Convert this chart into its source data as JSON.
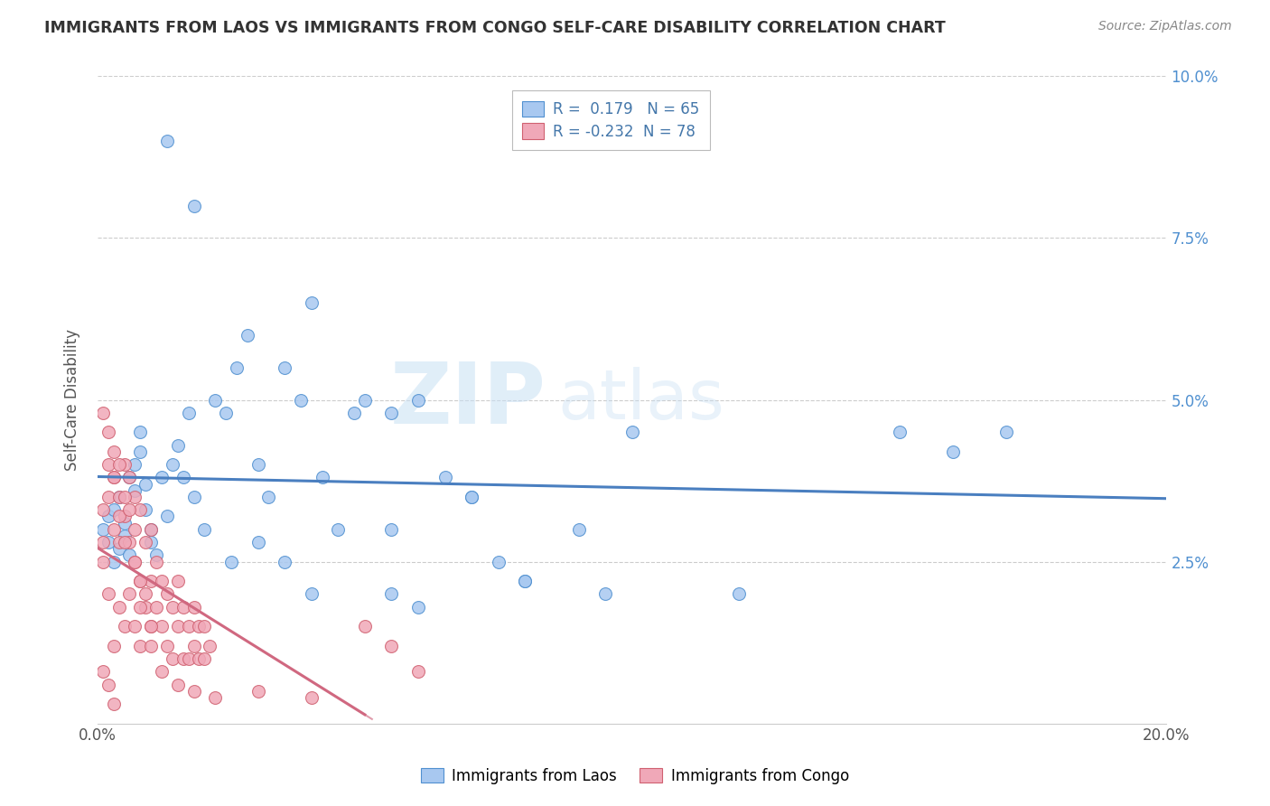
{
  "title": "IMMIGRANTS FROM LAOS VS IMMIGRANTS FROM CONGO SELF-CARE DISABILITY CORRELATION CHART",
  "source": "Source: ZipAtlas.com",
  "ylabel": "Self-Care Disability",
  "xlim": [
    0.0,
    0.2
  ],
  "ylim": [
    0.0,
    0.1
  ],
  "xticks": [
    0.0,
    0.2
  ],
  "xticklabels": [
    "0.0%",
    "20.0%"
  ],
  "yticks_right": [
    0.025,
    0.05,
    0.075,
    0.1
  ],
  "yticklabels_right": [
    "2.5%",
    "5.0%",
    "7.5%",
    "10.0%"
  ],
  "laos_fill": "#a8c8f0",
  "laos_edge": "#5090d0",
  "congo_fill": "#f0a8b8",
  "congo_edge": "#d06070",
  "laos_line_color": "#4a7fc0",
  "congo_line_color": "#d06880",
  "R_laos": 0.179,
  "N_laos": 65,
  "R_congo": -0.232,
  "N_congo": 78,
  "legend_laos": "Immigrants from Laos",
  "legend_congo": "Immigrants from Congo",
  "watermark_zip": "ZIP",
  "watermark_atlas": "atlas",
  "grid_color": "#cccccc",
  "laos_x": [
    0.001,
    0.002,
    0.002,
    0.003,
    0.003,
    0.004,
    0.004,
    0.005,
    0.005,
    0.006,
    0.006,
    0.007,
    0.007,
    0.008,
    0.008,
    0.009,
    0.009,
    0.01,
    0.01,
    0.011,
    0.012,
    0.013,
    0.014,
    0.015,
    0.016,
    0.017,
    0.018,
    0.02,
    0.022,
    0.024,
    0.026,
    0.028,
    0.03,
    0.032,
    0.035,
    0.038,
    0.04,
    0.042,
    0.045,
    0.048,
    0.05,
    0.055,
    0.06,
    0.065,
    0.07,
    0.075,
    0.08,
    0.09,
    0.095,
    0.1,
    0.025,
    0.03,
    0.035,
    0.04,
    0.055,
    0.06,
    0.07,
    0.08,
    0.12,
    0.15,
    0.16,
    0.17,
    0.013,
    0.018,
    0.055
  ],
  "laos_y": [
    0.03,
    0.028,
    0.032,
    0.025,
    0.033,
    0.027,
    0.035,
    0.031,
    0.029,
    0.026,
    0.038,
    0.036,
    0.04,
    0.045,
    0.042,
    0.033,
    0.037,
    0.03,
    0.028,
    0.026,
    0.038,
    0.032,
    0.04,
    0.043,
    0.038,
    0.048,
    0.035,
    0.03,
    0.05,
    0.048,
    0.055,
    0.06,
    0.04,
    0.035,
    0.055,
    0.05,
    0.065,
    0.038,
    0.03,
    0.048,
    0.05,
    0.03,
    0.05,
    0.038,
    0.035,
    0.025,
    0.022,
    0.03,
    0.02,
    0.045,
    0.025,
    0.028,
    0.025,
    0.02,
    0.02,
    0.018,
    0.035,
    0.022,
    0.02,
    0.045,
    0.042,
    0.045,
    0.09,
    0.08,
    0.048
  ],
  "congo_x": [
    0.001,
    0.001,
    0.001,
    0.002,
    0.002,
    0.002,
    0.003,
    0.003,
    0.003,
    0.004,
    0.004,
    0.004,
    0.005,
    0.005,
    0.005,
    0.006,
    0.006,
    0.006,
    0.007,
    0.007,
    0.007,
    0.008,
    0.008,
    0.008,
    0.009,
    0.009,
    0.01,
    0.01,
    0.01,
    0.011,
    0.011,
    0.012,
    0.012,
    0.013,
    0.013,
    0.014,
    0.014,
    0.015,
    0.015,
    0.016,
    0.016,
    0.017,
    0.017,
    0.018,
    0.018,
    0.019,
    0.019,
    0.02,
    0.02,
    0.021,
    0.001,
    0.002,
    0.003,
    0.003,
    0.004,
    0.004,
    0.005,
    0.005,
    0.006,
    0.007,
    0.007,
    0.008,
    0.008,
    0.009,
    0.01,
    0.01,
    0.012,
    0.015,
    0.018,
    0.022,
    0.03,
    0.04,
    0.001,
    0.002,
    0.003,
    0.05,
    0.055,
    0.06
  ],
  "congo_y": [
    0.028,
    0.033,
    0.025,
    0.04,
    0.035,
    0.02,
    0.038,
    0.03,
    0.012,
    0.035,
    0.028,
    0.018,
    0.04,
    0.032,
    0.015,
    0.038,
    0.028,
    0.02,
    0.035,
    0.025,
    0.015,
    0.033,
    0.022,
    0.012,
    0.028,
    0.018,
    0.03,
    0.022,
    0.015,
    0.025,
    0.018,
    0.022,
    0.015,
    0.02,
    0.012,
    0.018,
    0.01,
    0.022,
    0.015,
    0.018,
    0.01,
    0.015,
    0.01,
    0.018,
    0.012,
    0.015,
    0.01,
    0.015,
    0.01,
    0.012,
    0.048,
    0.045,
    0.042,
    0.038,
    0.04,
    0.032,
    0.035,
    0.028,
    0.033,
    0.03,
    0.025,
    0.022,
    0.018,
    0.02,
    0.015,
    0.012,
    0.008,
    0.006,
    0.005,
    0.004,
    0.005,
    0.004,
    0.008,
    0.006,
    0.003,
    0.015,
    0.012,
    0.008
  ]
}
